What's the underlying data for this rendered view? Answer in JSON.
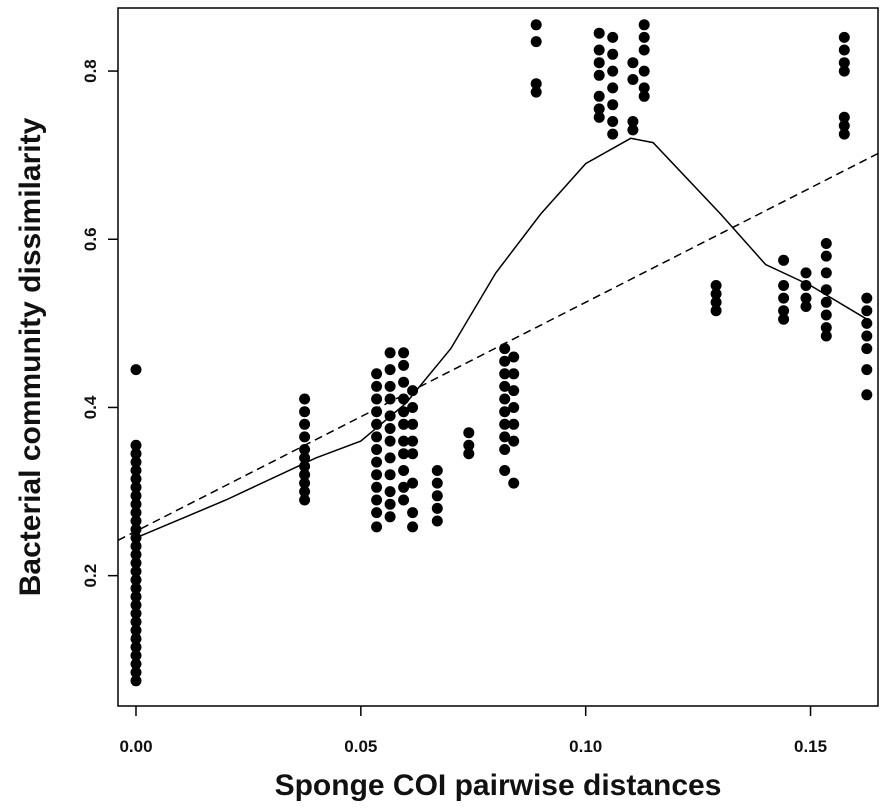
{
  "chart_data": {
    "type": "scatter",
    "xlabel": "Sponge COI pairwise distances",
    "ylabel": "Bacterial community dissimilarity",
    "xlim": [
      -0.004,
      0.165
    ],
    "ylim": [
      0.045,
      0.875
    ],
    "xticks": [
      0.0,
      0.05,
      0.1,
      0.15
    ],
    "xtick_labels": [
      "0.00",
      "0.05",
      "0.10",
      "0.15"
    ],
    "yticks": [
      0.2,
      0.4,
      0.6,
      0.8
    ],
    "ytick_labels": [
      "0.2",
      "0.4",
      "0.6",
      "0.8"
    ],
    "grid": false,
    "legend": "none",
    "points": [
      [
        0.0,
        0.445
      ],
      [
        0.0,
        0.355
      ],
      [
        0.0,
        0.345
      ],
      [
        0.0,
        0.335
      ],
      [
        0.0,
        0.325
      ],
      [
        0.0,
        0.315
      ],
      [
        0.0,
        0.305
      ],
      [
        0.0,
        0.295
      ],
      [
        0.0,
        0.285
      ],
      [
        0.0,
        0.275
      ],
      [
        0.0,
        0.265
      ],
      [
        0.0,
        0.255
      ],
      [
        0.0,
        0.245
      ],
      [
        0.0,
        0.235
      ],
      [
        0.0,
        0.225
      ],
      [
        0.0,
        0.215
      ],
      [
        0.0,
        0.205
      ],
      [
        0.0,
        0.195
      ],
      [
        0.0,
        0.185
      ],
      [
        0.0,
        0.175
      ],
      [
        0.0,
        0.165
      ],
      [
        0.0,
        0.155
      ],
      [
        0.0,
        0.145
      ],
      [
        0.0,
        0.135
      ],
      [
        0.0,
        0.125
      ],
      [
        0.0,
        0.115
      ],
      [
        0.0,
        0.105
      ],
      [
        0.0,
        0.095
      ],
      [
        0.0,
        0.085
      ],
      [
        0.0,
        0.075
      ],
      [
        0.0375,
        0.41
      ],
      [
        0.0375,
        0.395
      ],
      [
        0.0375,
        0.38
      ],
      [
        0.0375,
        0.365
      ],
      [
        0.0375,
        0.35
      ],
      [
        0.0375,
        0.34
      ],
      [
        0.0375,
        0.33
      ],
      [
        0.0375,
        0.32
      ],
      [
        0.0375,
        0.31
      ],
      [
        0.0375,
        0.3
      ],
      [
        0.0375,
        0.29
      ],
      [
        0.0535,
        0.44
      ],
      [
        0.0535,
        0.425
      ],
      [
        0.0535,
        0.41
      ],
      [
        0.0535,
        0.395
      ],
      [
        0.0535,
        0.38
      ],
      [
        0.0535,
        0.365
      ],
      [
        0.0535,
        0.35
      ],
      [
        0.0535,
        0.335
      ],
      [
        0.0535,
        0.32
      ],
      [
        0.0535,
        0.305
      ],
      [
        0.0535,
        0.29
      ],
      [
        0.0535,
        0.275
      ],
      [
        0.0535,
        0.258
      ],
      [
        0.0565,
        0.465
      ],
      [
        0.0565,
        0.445
      ],
      [
        0.0565,
        0.425
      ],
      [
        0.0565,
        0.41
      ],
      [
        0.0565,
        0.39
      ],
      [
        0.0565,
        0.375
      ],
      [
        0.0565,
        0.36
      ],
      [
        0.0565,
        0.34
      ],
      [
        0.0565,
        0.32
      ],
      [
        0.0565,
        0.3
      ],
      [
        0.0565,
        0.285
      ],
      [
        0.0565,
        0.27
      ],
      [
        0.0595,
        0.465
      ],
      [
        0.0595,
        0.45
      ],
      [
        0.0595,
        0.43
      ],
      [
        0.0595,
        0.41
      ],
      [
        0.0595,
        0.395
      ],
      [
        0.0595,
        0.38
      ],
      [
        0.0595,
        0.36
      ],
      [
        0.0595,
        0.345
      ],
      [
        0.0595,
        0.325
      ],
      [
        0.0595,
        0.305
      ],
      [
        0.0595,
        0.29
      ],
      [
        0.0615,
        0.42
      ],
      [
        0.0615,
        0.4
      ],
      [
        0.0615,
        0.38
      ],
      [
        0.0615,
        0.36
      ],
      [
        0.0615,
        0.345
      ],
      [
        0.0615,
        0.31
      ],
      [
        0.0615,
        0.275
      ],
      [
        0.0615,
        0.258
      ],
      [
        0.067,
        0.325
      ],
      [
        0.067,
        0.31
      ],
      [
        0.067,
        0.295
      ],
      [
        0.067,
        0.28
      ],
      [
        0.067,
        0.265
      ],
      [
        0.074,
        0.37
      ],
      [
        0.074,
        0.355
      ],
      [
        0.074,
        0.345
      ],
      [
        0.082,
        0.47
      ],
      [
        0.082,
        0.455
      ],
      [
        0.082,
        0.44
      ],
      [
        0.082,
        0.425
      ],
      [
        0.082,
        0.41
      ],
      [
        0.082,
        0.395
      ],
      [
        0.082,
        0.38
      ],
      [
        0.082,
        0.365
      ],
      [
        0.082,
        0.35
      ],
      [
        0.082,
        0.325
      ],
      [
        0.084,
        0.46
      ],
      [
        0.084,
        0.44
      ],
      [
        0.084,
        0.42
      ],
      [
        0.084,
        0.4
      ],
      [
        0.084,
        0.38
      ],
      [
        0.084,
        0.36
      ],
      [
        0.084,
        0.31
      ],
      [
        0.089,
        0.855
      ],
      [
        0.089,
        0.835
      ],
      [
        0.089,
        0.785
      ],
      [
        0.089,
        0.775
      ],
      [
        0.103,
        0.845
      ],
      [
        0.103,
        0.825
      ],
      [
        0.103,
        0.81
      ],
      [
        0.103,
        0.795
      ],
      [
        0.103,
        0.77
      ],
      [
        0.103,
        0.755
      ],
      [
        0.103,
        0.745
      ],
      [
        0.106,
        0.84
      ],
      [
        0.106,
        0.82
      ],
      [
        0.106,
        0.8
      ],
      [
        0.106,
        0.78
      ],
      [
        0.106,
        0.76
      ],
      [
        0.106,
        0.74
      ],
      [
        0.106,
        0.725
      ],
      [
        0.1105,
        0.81
      ],
      [
        0.1105,
        0.79
      ],
      [
        0.1105,
        0.74
      ],
      [
        0.1105,
        0.73
      ],
      [
        0.113,
        0.855
      ],
      [
        0.113,
        0.84
      ],
      [
        0.113,
        0.825
      ],
      [
        0.113,
        0.8
      ],
      [
        0.113,
        0.78
      ],
      [
        0.113,
        0.77
      ],
      [
        0.129,
        0.545
      ],
      [
        0.129,
        0.535
      ],
      [
        0.129,
        0.525
      ],
      [
        0.129,
        0.515
      ],
      [
        0.144,
        0.575
      ],
      [
        0.144,
        0.545
      ],
      [
        0.144,
        0.53
      ],
      [
        0.144,
        0.515
      ],
      [
        0.144,
        0.505
      ],
      [
        0.149,
        0.56
      ],
      [
        0.149,
        0.545
      ],
      [
        0.149,
        0.53
      ],
      [
        0.149,
        0.52
      ],
      [
        0.1535,
        0.595
      ],
      [
        0.1535,
        0.58
      ],
      [
        0.1535,
        0.56
      ],
      [
        0.1535,
        0.54
      ],
      [
        0.1535,
        0.525
      ],
      [
        0.1535,
        0.51
      ],
      [
        0.1535,
        0.495
      ],
      [
        0.1535,
        0.485
      ],
      [
        0.1575,
        0.84
      ],
      [
        0.1575,
        0.825
      ],
      [
        0.1575,
        0.81
      ],
      [
        0.1575,
        0.8
      ],
      [
        0.1575,
        0.745
      ],
      [
        0.1575,
        0.735
      ],
      [
        0.1575,
        0.725
      ],
      [
        0.1625,
        0.53
      ],
      [
        0.1625,
        0.515
      ],
      [
        0.1625,
        0.5
      ],
      [
        0.1625,
        0.485
      ],
      [
        0.1625,
        0.47
      ],
      [
        0.1625,
        0.445
      ],
      [
        0.1625,
        0.415
      ]
    ],
    "linear_fit": [
      [
        -0.004,
        0.242
      ],
      [
        0.165,
        0.702
      ]
    ],
    "smooth_curve": [
      [
        0.0,
        0.245
      ],
      [
        0.02,
        0.29
      ],
      [
        0.04,
        0.34
      ],
      [
        0.05,
        0.36
      ],
      [
        0.06,
        0.405
      ],
      [
        0.07,
        0.47
      ],
      [
        0.08,
        0.56
      ],
      [
        0.09,
        0.63
      ],
      [
        0.1,
        0.69
      ],
      [
        0.11,
        0.72
      ],
      [
        0.115,
        0.715
      ],
      [
        0.13,
        0.63
      ],
      [
        0.14,
        0.57
      ],
      [
        0.15,
        0.545
      ],
      [
        0.1625,
        0.505
      ]
    ]
  }
}
